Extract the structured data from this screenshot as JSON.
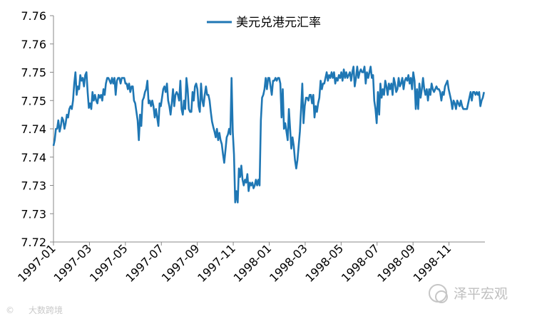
{
  "chart_data": {
    "type": "line",
    "title": "",
    "xlabel": "",
    "ylabel": "",
    "series": [
      {
        "name": "美元兑港元汇率",
        "color": "#1F77B4",
        "x_start": "1997-01",
        "x_end": "1998-12",
        "values": [
          7.7395,
          7.7405,
          7.7425,
          7.7425,
          7.744,
          7.742,
          7.743,
          7.7445,
          7.744,
          7.7425,
          7.7435,
          7.745,
          7.7445,
          7.746,
          7.7465,
          7.746,
          7.7475,
          7.7505,
          7.7525,
          7.7485,
          7.75,
          7.7495,
          7.752,
          7.751,
          7.7515,
          7.75,
          7.752,
          7.7525,
          7.749,
          7.7462,
          7.747,
          7.746,
          7.749,
          7.7475,
          7.7485,
          7.7475,
          7.747,
          7.7485,
          7.748,
          7.7485,
          7.7475,
          7.7495,
          7.7485,
          7.7505,
          7.7515,
          7.7515,
          7.751,
          7.7505,
          7.7515,
          7.7505,
          7.7515,
          7.7485,
          7.751,
          7.7515,
          7.7515,
          7.7505,
          7.7515,
          7.7515,
          7.7515,
          7.7505,
          7.7505,
          7.7495,
          7.7505,
          7.749,
          7.75,
          7.75,
          7.7475,
          7.747,
          7.7455,
          7.744,
          7.7405,
          7.745,
          7.743,
          7.7475,
          7.748,
          7.749,
          7.7495,
          7.751,
          7.747,
          7.7475,
          7.7465,
          7.7475,
          7.7465,
          7.7445,
          7.746,
          7.7445,
          7.743,
          7.747,
          7.7465,
          7.748,
          7.7495,
          7.75,
          7.749,
          7.7505,
          7.7475,
          7.7465,
          7.745,
          7.747,
          7.7495,
          7.7465,
          7.7485,
          7.749,
          7.7485,
          7.7475,
          7.751,
          7.746,
          7.745,
          7.7475,
          7.746,
          7.7515,
          7.7495,
          7.746,
          7.7455,
          7.7455,
          7.749,
          7.7475,
          7.75,
          7.7505,
          7.7495,
          7.7465,
          7.7455,
          7.7505,
          7.7475,
          7.7465,
          7.7485,
          7.75,
          7.7485,
          7.7485,
          7.7475,
          7.7455,
          7.7438,
          7.7428,
          7.742,
          7.741,
          7.7425,
          7.7405,
          7.7418,
          7.7405,
          7.7398,
          7.738,
          7.7365,
          7.7388,
          7.741,
          7.7415,
          7.7425,
          7.7415,
          7.7515,
          7.742,
          7.738,
          7.7295,
          7.7315,
          7.7295,
          7.7355,
          7.734,
          7.736,
          7.7335,
          7.7325,
          7.7335,
          7.733,
          7.7345,
          7.7315,
          7.733,
          7.7325,
          7.733,
          7.732,
          7.7325,
          7.7335,
          7.7325,
          7.7335,
          7.7325,
          7.744,
          7.748,
          7.7485,
          7.7495,
          7.7515,
          7.7495,
          7.7515,
          7.7515,
          7.75,
          7.7485,
          7.751,
          7.751,
          7.7515,
          7.751,
          7.7515,
          7.7515,
          7.7505,
          7.7445,
          7.7495,
          7.7425,
          7.7435,
          7.742,
          7.7405,
          7.746,
          7.7425,
          7.739,
          7.741,
          7.7395,
          7.737,
          7.7355,
          7.737,
          7.7395,
          7.742,
          7.746,
          7.7505,
          7.7435,
          7.7465,
          7.748,
          7.748,
          7.7475,
          7.7485,
          7.7485,
          7.747,
          7.7485,
          7.7445,
          7.7465,
          7.7455,
          7.747,
          7.748,
          7.751,
          7.7495,
          7.7505,
          7.7505,
          7.7515,
          7.7525,
          7.751,
          7.752,
          7.7515,
          7.7525,
          7.7515,
          7.7525,
          7.7505,
          7.7515,
          7.751,
          7.752,
          7.7515,
          7.7525,
          7.751,
          7.753,
          7.7515,
          7.7525,
          7.7515,
          7.752,
          7.7525,
          7.751,
          7.7525,
          7.7535,
          7.75,
          7.7515,
          7.7535,
          7.7515,
          7.7525,
          7.753,
          7.7525,
          7.7525,
          7.7535,
          7.7505,
          7.7525,
          7.7515,
          7.7525,
          7.7535,
          7.7515,
          7.752,
          7.7475,
          7.746,
          7.7435,
          7.749,
          7.745,
          7.7505,
          7.748,
          7.7495,
          7.7485,
          7.751,
          7.75,
          7.7485,
          7.7505,
          7.7495,
          7.7505,
          7.7485,
          7.7515,
          7.7505,
          7.749,
          7.7495,
          7.7515,
          7.75,
          7.7505,
          7.7515,
          7.7495,
          7.751,
          7.7515,
          7.751,
          7.752,
          7.7505,
          7.7515,
          7.7495,
          7.7525,
          7.751,
          7.746,
          7.7495,
          7.746,
          7.7505,
          7.748,
          7.7495,
          7.7515,
          7.7495,
          7.7485,
          7.7495,
          7.7475,
          7.7495,
          7.7485,
          7.7505,
          7.7495,
          7.749,
          7.7495,
          7.75,
          7.7495,
          7.7495,
          7.749,
          7.7475,
          7.749,
          7.7485,
          7.75,
          7.7505,
          7.751,
          7.7495,
          7.7485,
          7.7475,
          7.746,
          7.7475,
          7.747,
          7.746,
          7.7475,
          7.747,
          7.7465,
          7.7475,
          7.7465,
          7.746,
          7.746,
          7.746,
          7.746,
          7.747,
          7.748,
          7.749,
          7.7475,
          7.749,
          7.749,
          7.7485,
          7.749,
          7.7485,
          7.749,
          7.7465,
          7.7475,
          7.748,
          7.749
        ]
      }
    ],
    "x_tick_labels": [
      "1997-01",
      "1997-03",
      "1997-05",
      "1997-07",
      "1997-09",
      "1997-11",
      "1998-01",
      "1998-03",
      "1998-05",
      "1998-07",
      "1998-09",
      "1998-11"
    ],
    "y_tick_labels": [
      "7.72",
      "7.73",
      "7.73",
      "7.74",
      "7.74",
      "7.75",
      "7.75",
      "7.76",
      "7.76"
    ],
    "y_range": [
      7.7225,
      7.7625
    ],
    "legend_position": "top-center",
    "grid": false
  },
  "watermarks": {
    "left": "大数跨境",
    "left_symbol": "©",
    "right": "泽平宏观"
  }
}
